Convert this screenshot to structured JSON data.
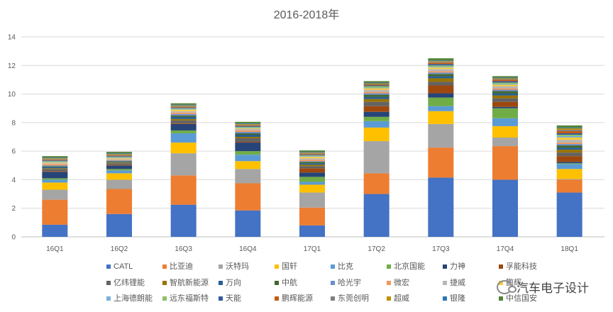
{
  "chart_data": {
    "type": "bar",
    "stacked": true,
    "title": "2016-2018年",
    "categories": [
      "16Q1",
      "16Q2",
      "16Q3",
      "16Q4",
      "17Q1",
      "17Q2",
      "17Q3",
      "17Q4",
      "18Q1"
    ],
    "ylim": [
      0,
      14
    ],
    "yticks": [
      "0",
      "2",
      "4",
      "6",
      "8",
      "10",
      "12",
      "14"
    ],
    "grid": true,
    "legend_position": "bottom",
    "series": [
      {
        "name": "CATL",
        "color": "#4472C4",
        "values": [
          0.85,
          1.6,
          2.25,
          1.85,
          0.8,
          3.0,
          4.15,
          4.0,
          3.1
        ]
      },
      {
        "name": "比亚迪",
        "color": "#ED7D31",
        "values": [
          1.75,
          1.75,
          2.05,
          1.9,
          1.25,
          1.45,
          2.1,
          2.35,
          0.9
        ]
      },
      {
        "name": "沃特玛",
        "color": "#A5A5A5",
        "values": [
          0.7,
          0.65,
          1.55,
          1.0,
          1.05,
          2.25,
          1.65,
          0.6,
          0.05
        ]
      },
      {
        "name": "国轩",
        "color": "#FFC000",
        "values": [
          0.5,
          0.45,
          0.75,
          0.55,
          0.55,
          0.95,
          0.9,
          0.8,
          0.7
        ]
      },
      {
        "name": "比克",
        "color": "#5B9BD5",
        "values": [
          0.2,
          0.2,
          0.65,
          0.45,
          0.2,
          0.45,
          0.35,
          0.55,
          0.35
        ]
      },
      {
        "name": "北京国能",
        "color": "#70AD47",
        "values": [
          0.1,
          0.1,
          0.2,
          0.25,
          0.35,
          0.3,
          0.6,
          0.7,
          0.05
        ]
      },
      {
        "name": "力神",
        "color": "#264478",
        "values": [
          0.45,
          0.25,
          0.45,
          0.6,
          0.3,
          0.35,
          0.3,
          0.1,
          0.1
        ]
      },
      {
        "name": "孚能科技",
        "color": "#9E480E",
        "values": [
          0.05,
          0.05,
          0.05,
          0.05,
          0.3,
          0.4,
          0.55,
          0.35,
          0.4
        ]
      },
      {
        "name": "亿纬锂能",
        "color": "#636363",
        "values": [
          0.15,
          0.1,
          0.2,
          0.25,
          0.15,
          0.3,
          0.25,
          0.25,
          0.25
        ]
      },
      {
        "name": "智航新能源",
        "color": "#997300",
        "values": [
          0.05,
          0.05,
          0.1,
          0.1,
          0.1,
          0.2,
          0.25,
          0.2,
          0.2
        ]
      },
      {
        "name": "万向",
        "color": "#255E91",
        "values": [
          0.1,
          0.05,
          0.15,
          0.15,
          0.1,
          0.15,
          0.15,
          0.15,
          0.15
        ]
      },
      {
        "name": "中航",
        "color": "#43682B",
        "values": [
          0.05,
          0.05,
          0.1,
          0.1,
          0.1,
          0.15,
          0.15,
          0.15,
          0.15
        ]
      },
      {
        "name": "哈光宇",
        "color": "#698ED0",
        "values": [
          0.05,
          0.05,
          0.1,
          0.1,
          0.05,
          0.1,
          0.1,
          0.1,
          0.1
        ]
      },
      {
        "name": "微宏",
        "color": "#F1975A",
        "values": [
          0.1,
          0.05,
          0.1,
          0.1,
          0.1,
          0.1,
          0.1,
          0.1,
          0.1
        ]
      },
      {
        "name": "捷威",
        "color": "#B7B7B7",
        "values": [
          0.05,
          0.05,
          0.1,
          0.1,
          0.1,
          0.15,
          0.15,
          0.15,
          0.2
        ]
      },
      {
        "name": "鹏辉",
        "color": "#FFCD33",
        "values": [
          0.05,
          0.05,
          0.1,
          0.05,
          0.1,
          0.1,
          0.1,
          0.1,
          0.15
        ]
      },
      {
        "name": "上海德朗能",
        "color": "#7CAFDD",
        "values": [
          0.05,
          0.05,
          0.05,
          0.05,
          0.05,
          0.05,
          0.05,
          0.05,
          0.1
        ]
      },
      {
        "name": "远东福斯特",
        "color": "#8CC168",
        "values": [
          0.05,
          0.05,
          0.05,
          0.05,
          0.05,
          0.1,
          0.1,
          0.1,
          0.1
        ]
      },
      {
        "name": "天能",
        "color": "#335AA1",
        "values": [
          0.05,
          0.05,
          0.05,
          0.05,
          0.05,
          0.05,
          0.1,
          0.1,
          0.1
        ]
      },
      {
        "name": "鹏辉能源",
        "color": "#C55A11",
        "values": [
          0.05,
          0.05,
          0.05,
          0.05,
          0.05,
          0.05,
          0.1,
          0.1,
          0.15
        ]
      },
      {
        "name": "东莞创明",
        "color": "#7F7F7F",
        "values": [
          0.05,
          0.05,
          0.05,
          0.05,
          0.05,
          0.05,
          0.05,
          0.05,
          0.1
        ]
      },
      {
        "name": "超威",
        "color": "#BF9000",
        "values": [
          0.05,
          0.05,
          0.05,
          0.05,
          0.05,
          0.05,
          0.05,
          0.05,
          0.1
        ]
      },
      {
        "name": "银隆",
        "color": "#2E75B6",
        "values": [
          0.05,
          0.05,
          0.05,
          0.05,
          0.05,
          0.05,
          0.05,
          0.05,
          0.05
        ]
      },
      {
        "name": "中信国安",
        "color": "#548235",
        "values": [
          0.1,
          0.1,
          0.1,
          0.1,
          0.1,
          0.1,
          0.15,
          0.1,
          0.15
        ]
      }
    ]
  },
  "watermark": {
    "icon": "wechat-icon",
    "text": "汽车电子设计"
  }
}
